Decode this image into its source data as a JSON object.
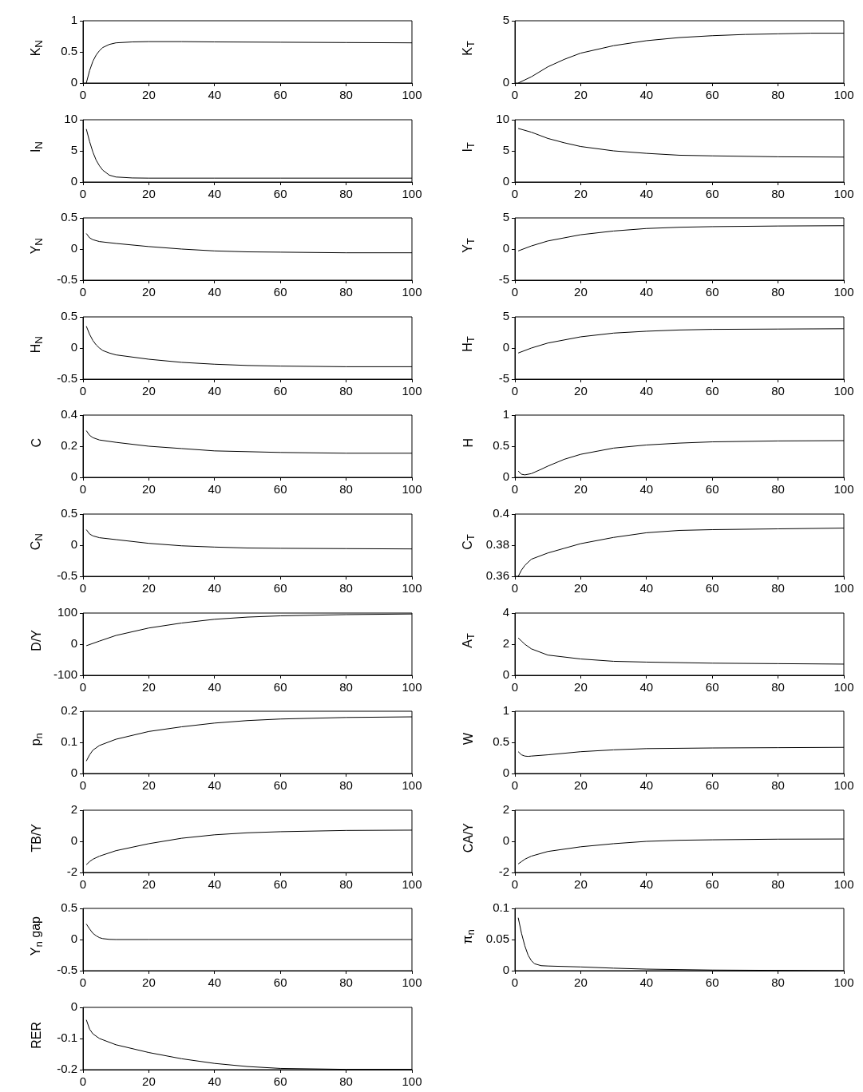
{
  "chart_data": [
    {
      "type": "line",
      "ylabel": "K$_{N}$",
      "x": [
        1,
        2,
        3,
        4,
        5,
        6,
        8,
        10,
        15,
        20,
        30,
        40,
        60,
        80,
        100
      ],
      "series": [
        {
          "color": "#000000",
          "values": [
            0,
            0.2,
            0.35,
            0.45,
            0.52,
            0.57,
            0.62,
            0.645,
            0.66,
            0.665,
            0.665,
            0.66,
            0.655,
            0.65,
            0.645
          ]
        }
      ],
      "xlim": [
        0,
        100
      ],
      "xticks": [
        0,
        20,
        40,
        60,
        80,
        100
      ],
      "ylim": [
        0,
        1
      ],
      "yticks": [
        0,
        0.5,
        1
      ]
    },
    {
      "type": "line",
      "ylabel": "K$_{T}$",
      "x": [
        1,
        5,
        10,
        15,
        20,
        30,
        40,
        50,
        60,
        70,
        80,
        90,
        100
      ],
      "series": [
        {
          "color": "#000000",
          "values": [
            0,
            0.5,
            1.3,
            1.9,
            2.4,
            3.0,
            3.4,
            3.65,
            3.8,
            3.9,
            3.95,
            4.0,
            4.0
          ]
        }
      ],
      "xlim": [
        0,
        100
      ],
      "xticks": [
        0,
        20,
        40,
        60,
        80,
        100
      ],
      "ylim": [
        0,
        5
      ],
      "yticks": [
        0,
        5
      ]
    },
    {
      "type": "line",
      "ylabel": "I$_{N}$",
      "x": [
        1,
        2,
        3,
        4,
        5,
        6,
        8,
        10,
        15,
        20,
        40,
        60,
        100
      ],
      "series": [
        {
          "color": "#000000",
          "values": [
            8.5,
            6.5,
            4.8,
            3.5,
            2.6,
            1.9,
            1.1,
            0.8,
            0.65,
            0.62,
            0.62,
            0.62,
            0.62
          ]
        }
      ],
      "xlim": [
        0,
        100
      ],
      "xticks": [
        0,
        20,
        40,
        60,
        80,
        100
      ],
      "ylim": [
        0,
        10
      ],
      "yticks": [
        0,
        5,
        10
      ]
    },
    {
      "type": "line",
      "ylabel": "I$_{T}$",
      "x": [
        1,
        5,
        10,
        15,
        20,
        30,
        40,
        50,
        60,
        80,
        100
      ],
      "series": [
        {
          "color": "#000000",
          "values": [
            8.6,
            8.0,
            7.0,
            6.3,
            5.7,
            5.0,
            4.6,
            4.3,
            4.2,
            4.05,
            4.0
          ]
        }
      ],
      "xlim": [
        0,
        100
      ],
      "xticks": [
        0,
        20,
        40,
        60,
        80,
        100
      ],
      "ylim": [
        0,
        10
      ],
      "yticks": [
        0,
        5,
        10
      ]
    },
    {
      "type": "line",
      "ylabel": "Y$_{N}$",
      "x": [
        1,
        2,
        3,
        5,
        10,
        20,
        30,
        40,
        50,
        60,
        80,
        100
      ],
      "series": [
        {
          "color": "#000000",
          "values": [
            0.25,
            0.18,
            0.15,
            0.12,
            0.09,
            0.04,
            0.0,
            -0.03,
            -0.045,
            -0.05,
            -0.06,
            -0.06
          ]
        }
      ],
      "xlim": [
        0,
        100
      ],
      "xticks": [
        0,
        20,
        40,
        60,
        80,
        100
      ],
      "ylim": [
        -0.5,
        0.5
      ],
      "yticks": [
        -0.5,
        0,
        0.5
      ]
    },
    {
      "type": "line",
      "ylabel": "Y$_{T}$",
      "x": [
        1,
        5,
        10,
        20,
        30,
        40,
        50,
        60,
        80,
        100
      ],
      "series": [
        {
          "color": "#000000",
          "values": [
            -0.3,
            0.5,
            1.3,
            2.3,
            2.9,
            3.3,
            3.5,
            3.6,
            3.7,
            3.75
          ]
        }
      ],
      "xlim": [
        0,
        100
      ],
      "xticks": [
        0,
        20,
        40,
        60,
        80,
        100
      ],
      "ylim": [
        -5,
        5
      ],
      "yticks": [
        -5,
        0,
        5
      ]
    },
    {
      "type": "line",
      "ylabel": "H$_{N}$",
      "x": [
        1,
        2,
        3,
        4,
        5,
        6,
        8,
        10,
        20,
        30,
        40,
        50,
        60,
        80,
        100
      ],
      "series": [
        {
          "color": "#000000",
          "values": [
            0.35,
            0.22,
            0.12,
            0.05,
            0.0,
            -0.04,
            -0.08,
            -0.11,
            -0.18,
            -0.23,
            -0.26,
            -0.28,
            -0.29,
            -0.3,
            -0.3
          ]
        }
      ],
      "xlim": [
        0,
        100
      ],
      "xticks": [
        0,
        20,
        40,
        60,
        80,
        100
      ],
      "ylim": [
        -0.5,
        0.5
      ],
      "yticks": [
        -0.5,
        0,
        0.5
      ]
    },
    {
      "type": "line",
      "ylabel": "H$_{T}$",
      "x": [
        1,
        5,
        10,
        20,
        30,
        40,
        50,
        60,
        80,
        100
      ],
      "series": [
        {
          "color": "#000000",
          "values": [
            -0.8,
            0,
            0.8,
            1.8,
            2.4,
            2.7,
            2.9,
            3.0,
            3.05,
            3.1
          ]
        }
      ],
      "xlim": [
        0,
        100
      ],
      "xticks": [
        0,
        20,
        40,
        60,
        80,
        100
      ],
      "ylim": [
        -5,
        5
      ],
      "yticks": [
        -5,
        0,
        5
      ]
    },
    {
      "type": "line",
      "ylabel": "C",
      "x": [
        1,
        2,
        3,
        5,
        10,
        20,
        30,
        40,
        50,
        60,
        80,
        100
      ],
      "series": [
        {
          "color": "#000000",
          "values": [
            0.3,
            0.27,
            0.255,
            0.24,
            0.225,
            0.2,
            0.185,
            0.17,
            0.165,
            0.16,
            0.155,
            0.155
          ]
        }
      ],
      "xlim": [
        0,
        100
      ],
      "xticks": [
        0,
        20,
        40,
        60,
        80,
        100
      ],
      "ylim": [
        0,
        0.4
      ],
      "yticks": [
        0,
        0.2,
        0.4
      ]
    },
    {
      "type": "line",
      "ylabel": "H",
      "x": [
        1,
        2,
        3,
        5,
        8,
        10,
        15,
        20,
        30,
        40,
        50,
        60,
        80,
        100
      ],
      "series": [
        {
          "color": "#000000",
          "values": [
            0.1,
            0.05,
            0.04,
            0.06,
            0.13,
            0.18,
            0.29,
            0.37,
            0.47,
            0.52,
            0.55,
            0.57,
            0.585,
            0.59
          ]
        }
      ],
      "xlim": [
        0,
        100
      ],
      "xticks": [
        0,
        20,
        40,
        60,
        80,
        100
      ],
      "ylim": [
        0,
        1
      ],
      "yticks": [
        0,
        0.5,
        1
      ]
    },
    {
      "type": "line",
      "ylabel": "C$_{N}$",
      "x": [
        1,
        2,
        3,
        5,
        10,
        20,
        30,
        40,
        50,
        60,
        80,
        100
      ],
      "series": [
        {
          "color": "#000000",
          "values": [
            0.25,
            0.18,
            0.15,
            0.12,
            0.09,
            0.03,
            -0.01,
            -0.03,
            -0.045,
            -0.05,
            -0.055,
            -0.06
          ]
        }
      ],
      "xlim": [
        0,
        100
      ],
      "xticks": [
        0,
        20,
        40,
        60,
        80,
        100
      ],
      "ylim": [
        -0.5,
        0.5
      ],
      "yticks": [
        -0.5,
        0,
        0.5
      ]
    },
    {
      "type": "line",
      "ylabel": "C$_{T}$",
      "x": [
        1,
        2,
        3,
        5,
        10,
        15,
        20,
        30,
        40,
        50,
        60,
        80,
        100
      ],
      "series": [
        {
          "color": "#000000",
          "values": [
            0.36,
            0.364,
            0.367,
            0.371,
            0.375,
            0.378,
            0.381,
            0.385,
            0.388,
            0.3895,
            0.39,
            0.3905,
            0.391
          ]
        }
      ],
      "xlim": [
        0,
        100
      ],
      "xticks": [
        0,
        20,
        40,
        60,
        80,
        100
      ],
      "ylim": [
        0.36,
        0.4
      ],
      "yticks": [
        0.36,
        0.38,
        0.4
      ]
    },
    {
      "type": "line",
      "ylabel": "D/Y",
      "x": [
        1,
        5,
        10,
        20,
        30,
        40,
        50,
        60,
        80,
        100
      ],
      "series": [
        {
          "color": "#000000",
          "values": [
            -5,
            10,
            28,
            52,
            68,
            80,
            87,
            91,
            95,
            97
          ]
        }
      ],
      "xlim": [
        0,
        100
      ],
      "xticks": [
        0,
        20,
        40,
        60,
        80,
        100
      ],
      "ylim": [
        -100,
        100
      ],
      "yticks": [
        -100,
        0,
        100
      ]
    },
    {
      "type": "line",
      "ylabel": "A$_{T}$",
      "x": [
        1,
        2,
        3,
        5,
        10,
        20,
        30,
        40,
        60,
        80,
        100
      ],
      "series": [
        {
          "color": "#000000",
          "values": [
            2.4,
            2.2,
            2.0,
            1.7,
            1.3,
            1.05,
            0.9,
            0.85,
            0.78,
            0.75,
            0.72
          ]
        }
      ],
      "xlim": [
        0,
        100
      ],
      "xticks": [
        0,
        20,
        40,
        60,
        80,
        100
      ],
      "ylim": [
        0,
        4
      ],
      "yticks": [
        0,
        2,
        4
      ]
    },
    {
      "type": "line",
      "ylabel": "p$_{n}$",
      "x": [
        1,
        2,
        3,
        5,
        10,
        20,
        30,
        40,
        50,
        60,
        80,
        100
      ],
      "series": [
        {
          "color": "#000000",
          "values": [
            0.04,
            0.06,
            0.075,
            0.09,
            0.11,
            0.135,
            0.15,
            0.162,
            0.17,
            0.175,
            0.18,
            0.182
          ]
        }
      ],
      "xlim": [
        0,
        100
      ],
      "xticks": [
        0,
        20,
        40,
        60,
        80,
        100
      ],
      "ylim": [
        0,
        0.2
      ],
      "yticks": [
        0,
        0.1,
        0.2
      ]
    },
    {
      "type": "line",
      "ylabel": "W",
      "x": [
        1,
        2,
        3,
        4,
        5,
        10,
        20,
        30,
        40,
        60,
        80,
        100
      ],
      "series": [
        {
          "color": "#000000",
          "values": [
            0.35,
            0.3,
            0.28,
            0.275,
            0.28,
            0.3,
            0.35,
            0.38,
            0.4,
            0.41,
            0.415,
            0.42
          ]
        }
      ],
      "xlim": [
        0,
        100
      ],
      "xticks": [
        0,
        20,
        40,
        60,
        80,
        100
      ],
      "ylim": [
        0,
        1
      ],
      "yticks": [
        0,
        0.5,
        1
      ]
    },
    {
      "type": "line",
      "ylabel": "TB/Y",
      "x": [
        1,
        2,
        3,
        5,
        10,
        20,
        30,
        40,
        50,
        60,
        80,
        100
      ],
      "series": [
        {
          "color": "#000000",
          "values": [
            -1.5,
            -1.3,
            -1.15,
            -0.95,
            -0.6,
            -0.15,
            0.2,
            0.42,
            0.55,
            0.62,
            0.7,
            0.72
          ]
        }
      ],
      "xlim": [
        0,
        100
      ],
      "xticks": [
        0,
        20,
        40,
        60,
        80,
        100
      ],
      "ylim": [
        -2,
        2
      ],
      "yticks": [
        -2,
        0,
        2
      ]
    },
    {
      "type": "line",
      "ylabel": "CA/Y",
      "x": [
        1,
        2,
        3,
        5,
        10,
        20,
        30,
        40,
        50,
        60,
        80,
        100
      ],
      "series": [
        {
          "color": "#000000",
          "values": [
            -1.45,
            -1.3,
            -1.15,
            -0.95,
            -0.65,
            -0.35,
            -0.15,
            0.0,
            0.07,
            0.1,
            0.14,
            0.15
          ]
        }
      ],
      "xlim": [
        0,
        100
      ],
      "xticks": [
        0,
        20,
        40,
        60,
        80,
        100
      ],
      "ylim": [
        -2,
        2
      ],
      "yticks": [
        -2,
        0,
        2
      ]
    },
    {
      "type": "line",
      "ylabel": "Y$_{n}$ gap",
      "x": [
        1,
        2,
        3,
        4,
        5,
        6,
        8,
        10,
        20,
        100
      ],
      "series": [
        {
          "color": "#000000",
          "values": [
            0.25,
            0.17,
            0.1,
            0.06,
            0.03,
            0.015,
            0.003,
            0,
            0,
            0
          ]
        }
      ],
      "xlim": [
        0,
        100
      ],
      "xticks": [
        0,
        20,
        40,
        60,
        80,
        100
      ],
      "ylim": [
        -0.5,
        0.5
      ],
      "yticks": [
        -0.5,
        0,
        0.5
      ]
    },
    {
      "type": "line",
      "ylabel": "π$_{n}$",
      "x": [
        1,
        2,
        3,
        4,
        5,
        6,
        8,
        10,
        20,
        30,
        40,
        60,
        100
      ],
      "series": [
        {
          "color": "#000000",
          "values": [
            0.085,
            0.06,
            0.04,
            0.025,
            0.016,
            0.011,
            0.008,
            0.0075,
            0.006,
            0.004,
            0.0025,
            0.001,
            0
          ]
        }
      ],
      "xlim": [
        0,
        100
      ],
      "xticks": [
        0,
        20,
        40,
        60,
        80,
        100
      ],
      "ylim": [
        0,
        0.1
      ],
      "yticks": [
        0,
        0.05,
        0.1
      ]
    },
    {
      "type": "line",
      "ylabel": "RER",
      "x": [
        1,
        2,
        3,
        5,
        10,
        20,
        30,
        40,
        50,
        60,
        80,
        100
      ],
      "series": [
        {
          "color": "#000000",
          "values": [
            -0.04,
            -0.07,
            -0.085,
            -0.1,
            -0.12,
            -0.145,
            -0.165,
            -0.18,
            -0.19,
            -0.196,
            -0.199,
            -0.199
          ]
        }
      ],
      "xlim": [
        0,
        100
      ],
      "xticks": [
        0,
        20,
        40,
        60,
        80,
        100
      ],
      "ylim": [
        -0.2,
        0
      ],
      "yticks": [
        -0.2,
        -0.1,
        0
      ]
    }
  ]
}
